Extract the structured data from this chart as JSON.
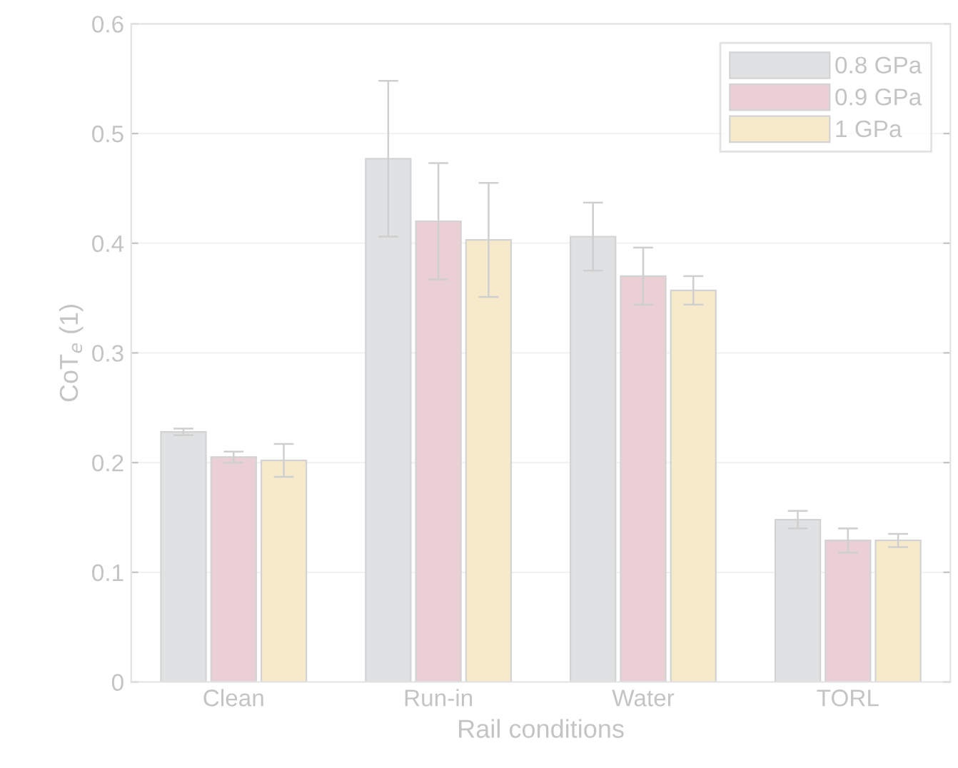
{
  "chart_data": {
    "type": "bar",
    "xlabel": "Rail conditions",
    "ylabel": "CoT$_{e}$ (1)",
    "categories": [
      "Clean",
      "Run-in",
      "Water",
      "TORL"
    ],
    "series": [
      {
        "name": "0.8 GPa",
        "color": "#dfe1e2",
        "values": [
          0.228,
          0.477,
          0.406,
          0.148
        ],
        "errors": [
          0.003,
          0.071,
          0.031,
          0.008
        ]
      },
      {
        "name": "0.9 GPa",
        "color": "#eacfd5",
        "values": [
          0.205,
          0.42,
          0.37,
          0.129
        ],
        "errors": [
          0.005,
          0.053,
          0.026,
          0.011
        ]
      },
      {
        "name": "1 GPa",
        "color": "#f6eacb",
        "values": [
          0.202,
          0.403,
          0.357,
          0.129
        ],
        "errors": [
          0.015,
          0.052,
          0.013,
          0.006
        ]
      }
    ],
    "ylim": [
      0,
      0.6
    ],
    "yticks": [
      0,
      0.1,
      0.2,
      0.3,
      0.4,
      0.5,
      0.6
    ],
    "grid": "y",
    "legend": "top right"
  }
}
